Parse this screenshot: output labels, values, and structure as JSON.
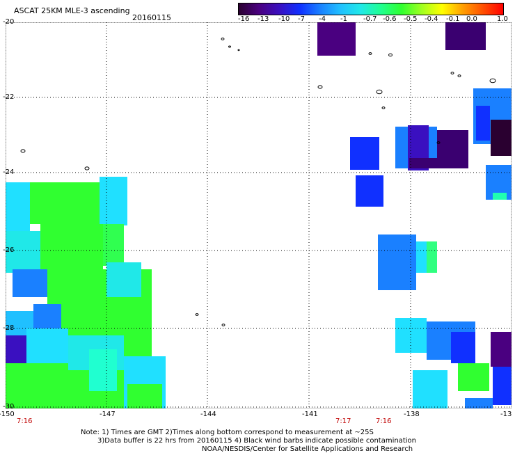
{
  "header": {
    "title": "ASCAT 25KM MLE-3 ascending",
    "date": "20160115"
  },
  "colorbar": {
    "stops": [
      "#2a0030",
      "#4a0080",
      "#3a10c0",
      "#1030ff",
      "#1a80ff",
      "#20c0ff",
      "#20e8e8",
      "#20ff90",
      "#30ff30",
      "#a0ff20",
      "#ffff00",
      "#ffa000",
      "#ff5000",
      "#ff0000"
    ],
    "labels": [
      "-16",
      "-13",
      "-10",
      "-7",
      "-4",
      "-1",
      "-0.7",
      "-0.6",
      "-0.5",
      "-0.4",
      "-0.1",
      "0.0",
      "1.0"
    ]
  },
  "map": {
    "lat_labels": [
      "-20",
      "-22",
      "-24",
      "-26",
      "-28",
      "-30"
    ],
    "lon_labels": [
      "-150",
      "-147",
      "-144",
      "-141",
      "-138",
      "-13"
    ],
    "time_labels": [
      "7:16",
      "7:17",
      "7:16"
    ],
    "time_color": "#c00000"
  },
  "footer": {
    "line1": "Note: 1) Times are GMT 2)Times along bottom correspond to measurement at ~25S",
    "line2": "3)Data buffer is 22 hrs from 20160115 4) Black wind barbs indicate possible contamination",
    "line3": "NOAA/NESDIS/Center for Satellite Applications and Research"
  }
}
